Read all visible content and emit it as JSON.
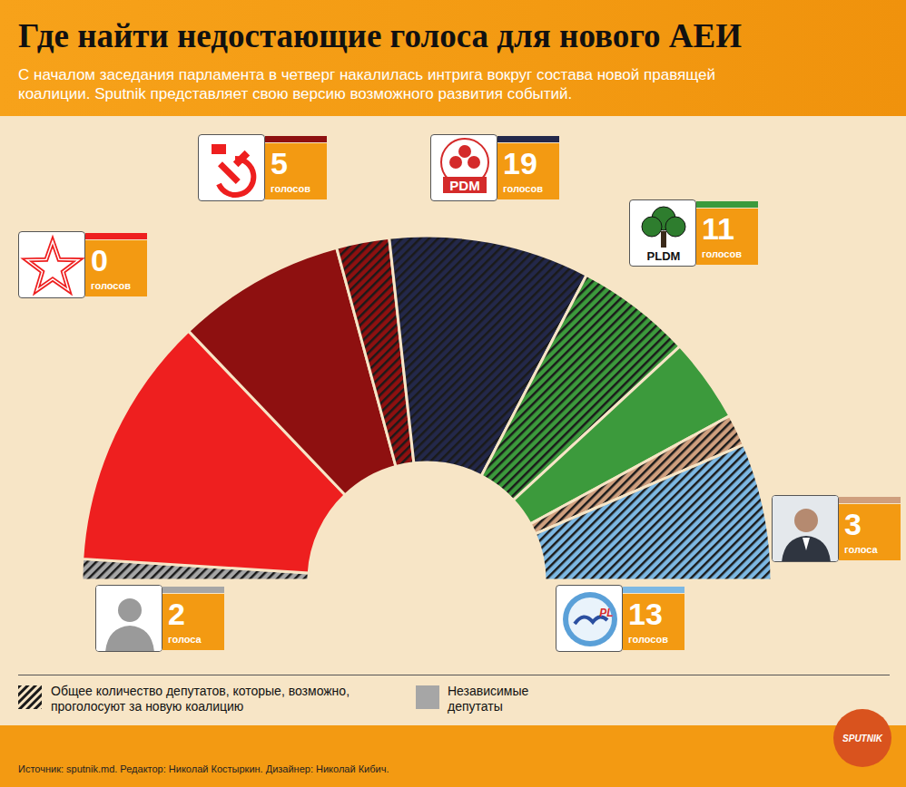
{
  "header": {
    "title": "Где найти недостающие голоса для нового АЕИ",
    "subtitle": "С началом заседания парламента в четверг накалилась интрига вокруг состава новой правящей коалиции. Sputnik представляет свою версию возможного развития событий."
  },
  "chart_data": {
    "type": "pie",
    "groups": [
      {
        "color": "#a6a6a6",
        "votes": 2,
        "other_seats": 0,
        "votes_label": "голоса"
      },
      {
        "color": "#ee1f1f",
        "votes": 0,
        "other_seats": 24,
        "votes_label": "голосов"
      },
      {
        "color": "#8e1010",
        "votes": 5,
        "other_seats": 16,
        "votes_label": "голосов"
      },
      {
        "color": "#23284a",
        "votes": 19,
        "other_seats": 0,
        "votes_label": "голосов",
        "logo_text": "PDM"
      },
      {
        "color": "#3c9a3c",
        "votes": 11,
        "other_seats": 8,
        "votes_label": "голосов",
        "logo_text": "PLDM"
      },
      {
        "color": "#cf9f7e",
        "votes": 3,
        "other_seats": 0,
        "votes_label": "голоса"
      },
      {
        "color": "#7db8e3",
        "votes": 13,
        "other_seats": 0,
        "votes_label": "голосов",
        "logo_text": "PL"
      }
    ],
    "data_labels": true
  },
  "legend": {
    "hatched": "Общее количество депутатов, которые, возможно, проголосуют за новую коалицию",
    "independent": "Независимые депутаты"
  },
  "footer": {
    "source": "Источник: sputnik.md. Редактор: Николай Костыркин. Дизайнер: Николай Кибич.",
    "brand": "SPUTNIK"
  }
}
